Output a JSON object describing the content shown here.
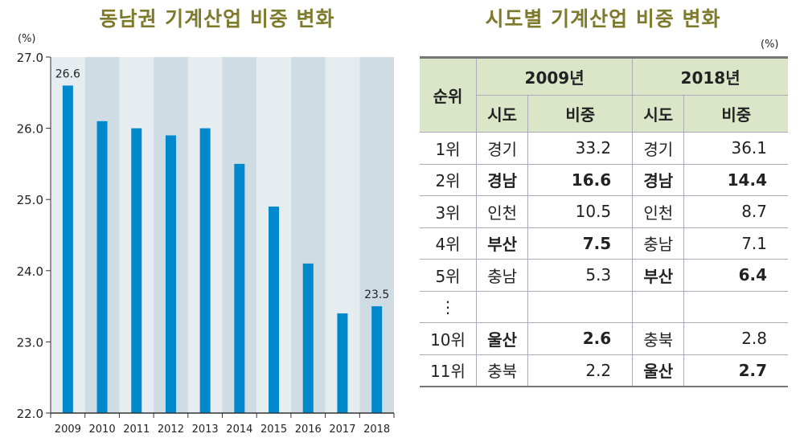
{
  "chart_data": {
    "type": "bar",
    "title": "동남권 기계산업 비중 변화",
    "ylabel": "(%)",
    "categories": [
      "2009",
      "2010",
      "2011",
      "2012",
      "2013",
      "2014",
      "2015",
      "2016",
      "2017",
      "2018"
    ],
    "values": [
      26.6,
      26.1,
      26.0,
      25.9,
      26.0,
      25.5,
      24.9,
      24.1,
      23.4,
      23.5
    ],
    "data_labels": {
      "2009": "26.6",
      "2018": "23.5"
    },
    "ylim": [
      22.0,
      27.0
    ],
    "yticks": [
      "22.0",
      "23.0",
      "24.0",
      "25.0",
      "26.0",
      "27.0"
    ],
    "bar_color": "#0088cc",
    "band_colors": [
      "#e6edf1",
      "#cfdce3"
    ]
  },
  "table": {
    "title": "시도별 기계산업 비중 변화",
    "unit": "(%)",
    "rank_header": "순위",
    "year_headers": [
      "2009년",
      "2018년"
    ],
    "sub_headers": [
      "시도",
      "비중",
      "시도",
      "비중"
    ],
    "rows": [
      {
        "rank": "1위",
        "r1": "경기",
        "v1": "33.2",
        "r2": "경기",
        "v2": "36.1",
        "b1": false,
        "b2": false
      },
      {
        "rank": "2위",
        "r1": "경남",
        "v1": "16.6",
        "r2": "경남",
        "v2": "14.4",
        "b1": true,
        "b2": true
      },
      {
        "rank": "3위",
        "r1": "인천",
        "v1": "10.5",
        "r2": "인천",
        "v2": "8.7",
        "b1": false,
        "b2": false
      },
      {
        "rank": "4위",
        "r1": "부산",
        "v1": "7.5",
        "r2": "충남",
        "v2": "7.1",
        "b1": true,
        "b2": false
      },
      {
        "rank": "5위",
        "r1": "충남",
        "v1": "5.3",
        "r2": "부산",
        "v2": "6.4",
        "b1": false,
        "b2": true
      },
      {
        "rank": "⋮",
        "r1": "",
        "v1": "",
        "r2": "",
        "v2": "",
        "b1": false,
        "b2": false
      },
      {
        "rank": "10위",
        "r1": "울산",
        "v1": "2.6",
        "r2": "충북",
        "v2": "2.8",
        "b1": true,
        "b2": false
      },
      {
        "rank": "11위",
        "r1": "충북",
        "v1": "2.2",
        "r2": "울산",
        "v2": "2.7",
        "b1": false,
        "b2": true
      }
    ]
  }
}
